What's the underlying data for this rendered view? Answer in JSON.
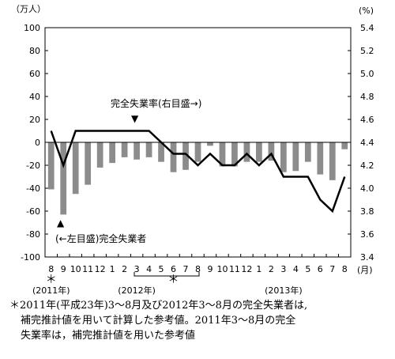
{
  "chart_data": {
    "type": "bar+line",
    "left_axis": {
      "unit": "（万人）",
      "ticks": [
        100,
        80,
        60,
        40,
        20,
        0,
        -20,
        -40,
        -60,
        -80,
        -100
      ],
      "ylim": [
        -100,
        100
      ]
    },
    "right_axis": {
      "unit": "(%)",
      "ticks": [
        "5.4",
        "5.2",
        "5.0",
        "4.8",
        "4.6",
        "4.4",
        "4.2",
        "4.0",
        "3.8",
        "3.6",
        "3.4"
      ],
      "ylim": [
        3.4,
        5.4
      ]
    },
    "x_ticks": [
      "8",
      "9",
      "10",
      "11",
      "12",
      "1",
      "2",
      "3",
      "4",
      "5",
      "6",
      "7",
      "8",
      "9",
      "10",
      "11",
      "12",
      "1",
      "2",
      "3",
      "4",
      "5",
      "6",
      "7",
      "8"
    ],
    "month_unit": "(月)",
    "year_labels": [
      {
        "text": "(2011年)",
        "at_index": 0
      },
      {
        "text": "(2012年)",
        "at_index": 7
      },
      {
        "text": "(2013年)",
        "at_index": 19
      }
    ],
    "asterisks": [
      {
        "text": "＊",
        "at_index": 0
      },
      {
        "text": "＊",
        "at_index": 10
      }
    ],
    "series": [
      {
        "name": "(←左目盛)完全失業者",
        "axis": "left",
        "kind": "bar",
        "color": "#8c8c8c",
        "values": [
          -41,
          -63,
          -45,
          -37,
          -22,
          -18,
          -13,
          -15,
          -13,
          -17,
          -26,
          -24,
          -17,
          -3,
          -21,
          -21,
          -17,
          -17,
          -16,
          -26,
          -25,
          -17,
          -28,
          -33,
          -6
        ]
      },
      {
        "name": "完全失業率(右目盛→)",
        "axis": "right",
        "kind": "line",
        "color": "#000000",
        "values": [
          4.5,
          4.2,
          4.5,
          4.5,
          4.5,
          4.5,
          4.5,
          4.5,
          4.5,
          4.4,
          4.3,
          4.3,
          4.2,
          4.3,
          4.2,
          4.2,
          4.3,
          4.2,
          4.3,
          4.1,
          4.1,
          4.1,
          3.9,
          3.8,
          4.1
        ]
      }
    ],
    "annotations": {
      "line_label": "完全失業率(右目盛→)",
      "bar_label": "(←左目盛)完全失業者",
      "line_marker": "▼",
      "bar_marker": "▲"
    }
  },
  "footnote": [
    "＊2011年(平成23年)3～8月及び2012年3～8月の完全失業者は,",
    "補完推計値を用いて計算した参考値。2011年3～8月の完全",
    "失業率は，補完推計値を用いた参考値"
  ]
}
